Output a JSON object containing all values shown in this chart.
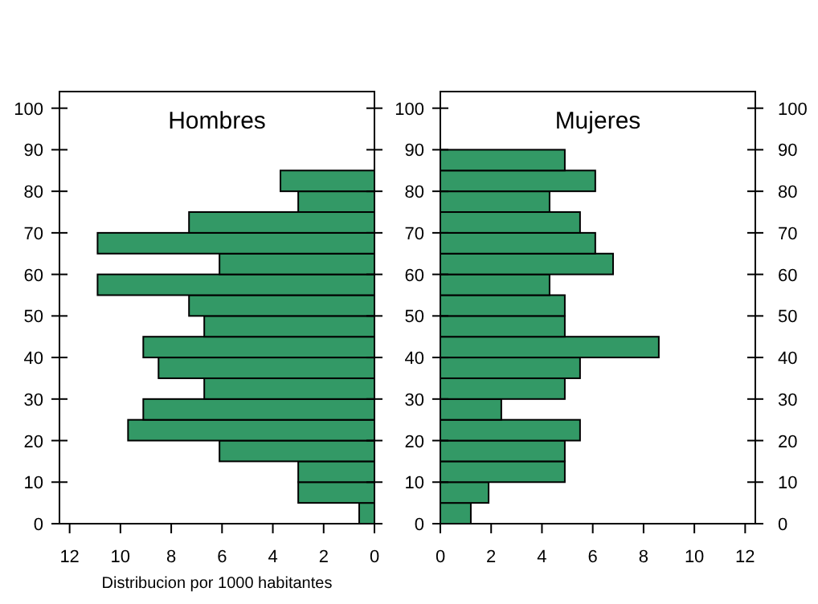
{
  "chart_data": [
    {
      "type": "histogram",
      "orientation": "horizontal",
      "title": "Hombres",
      "xlabel": "Distribucion por 1000 habitantes",
      "color": "#339966",
      "bins": [
        0,
        5,
        10,
        15,
        20,
        25,
        30,
        35,
        40,
        45,
        50,
        55,
        60,
        65,
        70,
        75,
        80,
        85
      ],
      "values": [
        0.6,
        3.0,
        3.0,
        6.1,
        9.7,
        9.1,
        6.7,
        8.5,
        9.1,
        6.7,
        7.3,
        10.9,
        6.1,
        10.9,
        7.3,
        3.0,
        3.7
      ],
      "xlim": [
        12.4,
        0
      ],
      "xticks": [
        12,
        10,
        8,
        6,
        4,
        2,
        0
      ],
      "ylim": [
        0,
        104
      ],
      "yticks": [
        0,
        10,
        20,
        30,
        40,
        50,
        60,
        70,
        80,
        90,
        100
      ]
    },
    {
      "type": "histogram",
      "orientation": "horizontal",
      "title": "Mujeres",
      "color": "#339966",
      "bins": [
        0,
        5,
        10,
        15,
        20,
        25,
        30,
        35,
        40,
        45,
        50,
        55,
        60,
        65,
        70,
        75,
        80,
        85,
        90
      ],
      "values": [
        1.2,
        1.9,
        4.9,
        4.9,
        5.5,
        2.4,
        4.9,
        5.5,
        8.6,
        4.9,
        4.9,
        4.3,
        6.8,
        6.1,
        5.5,
        4.3,
        6.1,
        4.9
      ],
      "xlim": [
        0,
        12.4
      ],
      "xticks": [
        0,
        2,
        4,
        6,
        8,
        10,
        12
      ],
      "ylim": [
        0,
        104
      ],
      "yticks": [
        0,
        10,
        20,
        30,
        40,
        50,
        60,
        70,
        80,
        90,
        100
      ],
      "y2lim": [
        0,
        104
      ],
      "y2ticks": [
        0,
        10,
        20,
        30,
        40,
        50,
        60,
        70,
        80,
        90,
        100
      ]
    }
  ]
}
